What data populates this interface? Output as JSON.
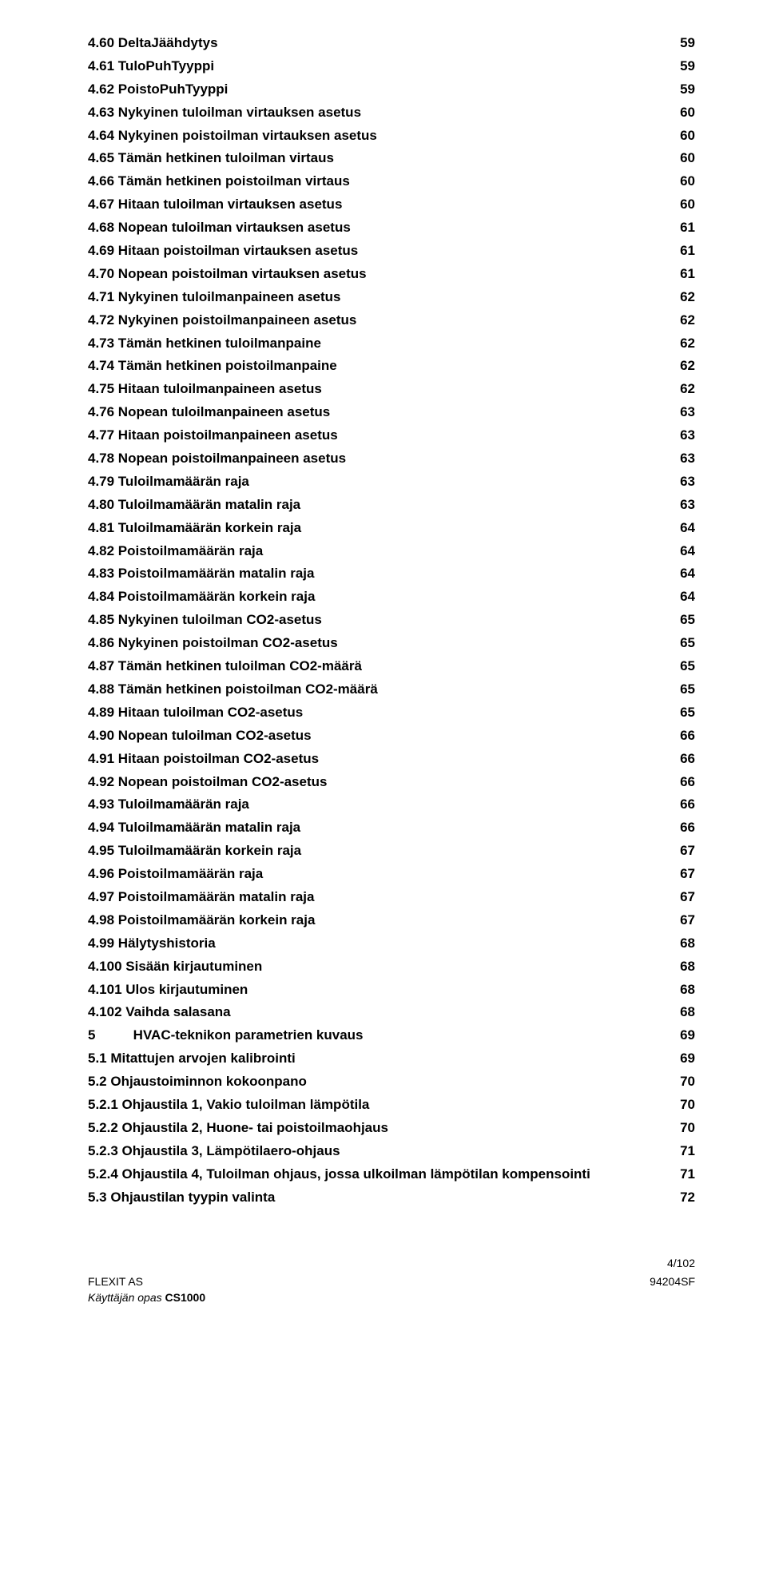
{
  "toc": [
    {
      "title": "4.60 DeltaJäähdytys",
      "page": "59"
    },
    {
      "title": "4.61 TuloPuhTyyppi",
      "page": "59"
    },
    {
      "title": "4.62 PoistoPuhTyyppi",
      "page": "59"
    },
    {
      "title": "4.63 Nykyinen tuloilman virtauksen asetus",
      "page": "60"
    },
    {
      "title": "4.64 Nykyinen poistoilman virtauksen asetus",
      "page": "60"
    },
    {
      "title": "4.65 Tämän hetkinen tuloilman virtaus",
      "page": "60"
    },
    {
      "title": "4.66 Tämän hetkinen poistoilman virtaus",
      "page": "60"
    },
    {
      "title": "4.67 Hitaan tuloilman virtauksen asetus",
      "page": "60"
    },
    {
      "title": "4.68 Nopean tuloilman virtauksen asetus",
      "page": "61"
    },
    {
      "title": "4.69 Hitaan poistoilman virtauksen asetus",
      "page": "61"
    },
    {
      "title": "4.70 Nopean poistoilman virtauksen asetus",
      "page": "61"
    },
    {
      "title": "4.71 Nykyinen tuloilmanpaineen asetus",
      "page": "62"
    },
    {
      "title": "4.72 Nykyinen poistoilmanpaineen asetus",
      "page": "62"
    },
    {
      "title": "4.73 Tämän hetkinen tuloilmanpaine",
      "page": "62"
    },
    {
      "title": "4.74 Tämän hetkinen poistoilmanpaine",
      "page": "62"
    },
    {
      "title": "4.75 Hitaan tuloilmanpaineen asetus",
      "page": "62"
    },
    {
      "title": "4.76 Nopean tuloilmanpaineen asetus",
      "page": "63"
    },
    {
      "title": "4.77 Hitaan poistoilmanpaineen asetus",
      "page": "63"
    },
    {
      "title": "4.78 Nopean poistoilmanpaineen asetus",
      "page": "63"
    },
    {
      "title": "4.79 Tuloilmamäärän raja",
      "page": "63"
    },
    {
      "title": "4.80 Tuloilmamäärän matalin raja",
      "page": "63"
    },
    {
      "title": "4.81 Tuloilmamäärän korkein raja",
      "page": "64"
    },
    {
      "title": "4.82 Poistoilmamäärän raja",
      "page": "64"
    },
    {
      "title": "4.83 Poistoilmamäärän matalin raja",
      "page": "64"
    },
    {
      "title": "4.84 Poistoilmamäärän korkein raja",
      "page": "64"
    },
    {
      "title": "4.85 Nykyinen tuloilman CO2-asetus",
      "page": "65"
    },
    {
      "title": "4.86 Nykyinen poistoilman CO2-asetus",
      "page": "65"
    },
    {
      "title": "4.87 Tämän hetkinen tuloilman CO2-määrä",
      "page": "65"
    },
    {
      "title": "4.88 Tämän hetkinen poistoilman CO2-määrä",
      "page": "65"
    },
    {
      "title": "4.89 Hitaan tuloilman CO2-asetus",
      "page": "65"
    },
    {
      "title": "4.90 Nopean tuloilman CO2-asetus",
      "page": "66"
    },
    {
      "title": "4.91 Hitaan poistoilman CO2-asetus",
      "page": "66"
    },
    {
      "title": "4.92 Nopean poistoilman CO2-asetus",
      "page": "66"
    },
    {
      "title": "4.93 Tuloilmamäärän raja",
      "page": "66"
    },
    {
      "title": "4.94 Tuloilmamäärän matalin raja",
      "page": "66"
    },
    {
      "title": "4.95 Tuloilmamäärän korkein raja",
      "page": "67"
    },
    {
      "title": "4.96 Poistoilmamäärän raja",
      "page": "67"
    },
    {
      "title": "4.97 Poistoilmamäärän matalin raja",
      "page": "67"
    },
    {
      "title": "4.98 Poistoilmamäärän korkein raja",
      "page": "67"
    },
    {
      "title": "4.99 Hälytyshistoria",
      "page": "68"
    },
    {
      "title": "4.100 Sisään kirjautuminen",
      "page": "68"
    },
    {
      "title": "4.101 Ulos kirjautuminen",
      "page": "68"
    },
    {
      "title": "4.102 Vaihda salasana",
      "page": "68"
    },
    {
      "title": "5          HVAC-teknikon parametrien kuvaus",
      "page": "69",
      "chapter": true
    },
    {
      "title": "5.1 Mitattujen arvojen kalibrointi",
      "page": "69"
    },
    {
      "title": "5.2 Ohjaustoiminnon kokoonpano",
      "page": "70"
    },
    {
      "title": "5.2.1 Ohjaustila 1, Vakio tuloilman lämpötila",
      "page": "70"
    },
    {
      "title": "5.2.2 Ohjaustila 2, Huone- tai poistoilmaohjaus",
      "page": "70"
    },
    {
      "title": "5.2.3 Ohjaustila 3, Lämpötilaero-ohjaus",
      "page": "71"
    },
    {
      "title": "5.2.4 Ohjaustila 4, Tuloilman ohjaus, jossa ulkoilman lämpötilan kompensointi",
      "page": "71"
    },
    {
      "title": "5.3 Ohjaustilan tyypin valinta",
      "page": "72"
    }
  ],
  "footer": {
    "page_indicator": "4/102",
    "company": "FLEXIT AS",
    "doc_line": "Käyttäjän opas CS1000",
    "doc_code": "94204SF"
  }
}
